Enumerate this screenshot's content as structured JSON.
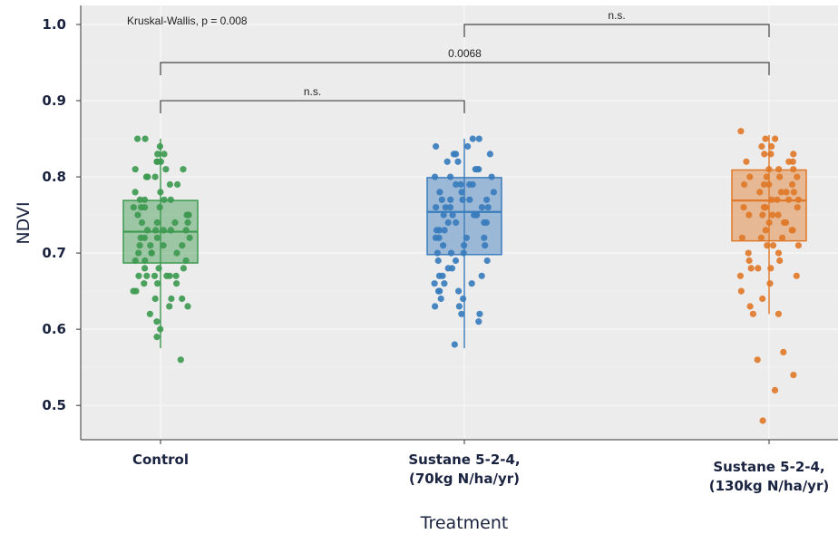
{
  "chart_data": {
    "type": "box",
    "title": "",
    "xlabel": "Treatment",
    "ylabel": "NDVI",
    "ylim": [
      0.455,
      1.025
    ],
    "yticks": [
      "0.5",
      "0.6",
      "0.7",
      "0.8",
      "0.9",
      "1.0"
    ],
    "grid": true,
    "annotation": "Kruskal-Wallis, p = 0.008",
    "comparisons": [
      {
        "from": 0,
        "to": 1,
        "label": "n.s.",
        "y": 0.9
      },
      {
        "from": 0,
        "to": 2,
        "label": "0.0068",
        "y": 0.95
      },
      {
        "from": 1,
        "to": 2,
        "label": "n.s.",
        "y": 1.0
      }
    ],
    "categories": [
      {
        "label_line1": "Control",
        "label_line2": "",
        "color": "#3d9a50",
        "q1": 0.687,
        "median": 0.728,
        "q3": 0.769,
        "whisker_low": 0.575,
        "whisker_high": 0.85,
        "points": [
          0.84,
          0.83,
          0.85,
          0.85,
          0.82,
          0.82,
          0.81,
          0.81,
          0.81,
          0.8,
          0.8,
          0.79,
          0.79,
          0.78,
          0.78,
          0.77,
          0.77,
          0.77,
          0.77,
          0.76,
          0.76,
          0.76,
          0.75,
          0.75,
          0.75,
          0.74,
          0.74,
          0.74,
          0.73,
          0.73,
          0.73,
          0.73,
          0.72,
          0.72,
          0.72,
          0.72,
          0.71,
          0.71,
          0.71,
          0.7,
          0.7,
          0.7,
          0.69,
          0.69,
          0.69,
          0.68,
          0.68,
          0.68,
          0.67,
          0.67,
          0.67,
          0.67,
          0.67,
          0.66,
          0.66,
          0.65,
          0.65,
          0.64,
          0.64,
          0.63,
          0.63,
          0.62,
          0.61,
          0.6,
          0.59,
          0.56,
          0.83,
          0.82,
          0.8,
          0.76,
          0.74,
          0.7,
          0.67,
          0.66,
          0.64,
          0.75,
          0.73,
          0.71
        ]
      },
      {
        "label_line1": "Sustane 5-2-4,",
        "label_line2": "(70kg N/ha/yr)",
        "color": "#3a7dbd",
        "q1": 0.698,
        "median": 0.754,
        "q3": 0.799,
        "whisker_low": 0.575,
        "whisker_high": 0.85,
        "points": [
          0.85,
          0.85,
          0.84,
          0.84,
          0.83,
          0.83,
          0.82,
          0.82,
          0.81,
          0.81,
          0.8,
          0.8,
          0.8,
          0.79,
          0.79,
          0.79,
          0.78,
          0.78,
          0.78,
          0.77,
          0.77,
          0.77,
          0.77,
          0.76,
          0.76,
          0.76,
          0.76,
          0.75,
          0.75,
          0.75,
          0.75,
          0.74,
          0.74,
          0.74,
          0.73,
          0.73,
          0.73,
          0.72,
          0.72,
          0.72,
          0.71,
          0.71,
          0.71,
          0.7,
          0.7,
          0.7,
          0.69,
          0.69,
          0.68,
          0.68,
          0.67,
          0.67,
          0.66,
          0.66,
          0.66,
          0.65,
          0.65,
          0.64,
          0.64,
          0.63,
          0.63,
          0.62,
          0.62,
          0.61,
          0.58,
          0.83,
          0.81,
          0.79,
          0.77,
          0.74,
          0.72,
          0.69,
          0.67,
          0.65,
          0.76,
          0.75
        ]
      },
      {
        "label_line1": "Sustane 5-2-4,",
        "label_line2": "(130kg N/ha/yr)",
        "color": "#e07a2a",
        "q1": 0.716,
        "median": 0.769,
        "q3": 0.809,
        "whisker_low": 0.62,
        "whisker_high": 0.855,
        "points": [
          0.86,
          0.85,
          0.85,
          0.84,
          0.84,
          0.83,
          0.83,
          0.83,
          0.82,
          0.82,
          0.81,
          0.81,
          0.81,
          0.8,
          0.8,
          0.8,
          0.79,
          0.79,
          0.79,
          0.78,
          0.78,
          0.78,
          0.77,
          0.77,
          0.77,
          0.77,
          0.76,
          0.76,
          0.76,
          0.75,
          0.75,
          0.75,
          0.74,
          0.74,
          0.74,
          0.73,
          0.73,
          0.72,
          0.72,
          0.72,
          0.71,
          0.71,
          0.7,
          0.7,
          0.69,
          0.69,
          0.68,
          0.68,
          0.68,
          0.67,
          0.67,
          0.66,
          0.65,
          0.64,
          0.63,
          0.62,
          0.62,
          0.57,
          0.56,
          0.54,
          0.52,
          0.48,
          0.82,
          0.8,
          0.78,
          0.76,
          0.73,
          0.71,
          0.79,
          0.75
        ]
      }
    ]
  }
}
